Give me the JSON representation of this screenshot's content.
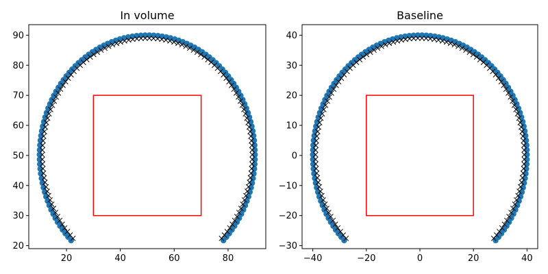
{
  "chart_data": [
    {
      "type": "scatter",
      "title": "In volume",
      "xlim": [
        6,
        94
      ],
      "ylim": [
        19,
        93.5
      ],
      "xticks": [
        20,
        40,
        60,
        80
      ],
      "yticks": [
        20,
        30,
        40,
        50,
        60,
        70,
        80,
        90
      ],
      "arc": {
        "center": [
          50,
          50
        ],
        "radius_points": 40,
        "radius_markers": 39,
        "start_deg": -135,
        "end_deg": 135,
        "count": 120
      },
      "rectangle": {
        "x": [
          30,
          70
        ],
        "y": [
          30,
          70
        ],
        "color": "#ff0000"
      },
      "series": [
        {
          "marker": "circle",
          "color": "#1f77b4"
        },
        {
          "marker": "x",
          "color": "#000000"
        }
      ]
    },
    {
      "type": "scatter",
      "title": "Baseline",
      "xlim": [
        -44,
        44
      ],
      "ylim": [
        -31,
        43.5
      ],
      "xticks": [
        -40,
        -20,
        0,
        20,
        40
      ],
      "yticks": [
        -30,
        -20,
        -10,
        0,
        10,
        20,
        30,
        40
      ],
      "arc": {
        "center": [
          0,
          0
        ],
        "radius_points": 40,
        "radius_markers": 39,
        "start_deg": -135,
        "end_deg": 135,
        "count": 120
      },
      "rectangle": {
        "x": [
          -20,
          20
        ],
        "y": [
          -20,
          20
        ],
        "color": "#ff0000"
      },
      "series": [
        {
          "marker": "circle",
          "color": "#1f77b4"
        },
        {
          "marker": "x",
          "color": "#000000"
        }
      ]
    }
  ]
}
